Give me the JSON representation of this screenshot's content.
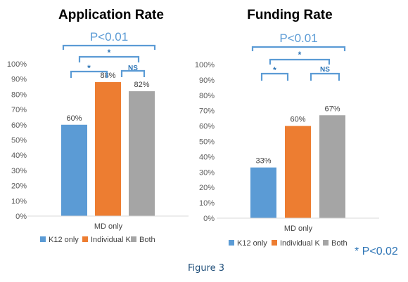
{
  "figure_caption": "Figure 3",
  "footnote": "* P<0.02",
  "chart_data": [
    {
      "type": "bar",
      "title": "Application Rate",
      "categories": [
        "MD only"
      ],
      "series": [
        {
          "name": "K12 only",
          "values": [
            60
          ],
          "label": "60%",
          "color": "#5b9bd5"
        },
        {
          "name": "Individual K",
          "values": [
            88
          ],
          "label": "88%",
          "color": "#ed7d31"
        },
        {
          "name": "Both",
          "values": [
            82
          ],
          "label": "82%",
          "color": "#a5a5a5"
        }
      ],
      "ylim": [
        0,
        100
      ],
      "y_ticks": [
        "0%",
        "10%",
        "20%",
        "30%",
        "40%",
        "50%",
        "60%",
        "70%",
        "80%",
        "90%",
        "100%"
      ],
      "grid": false,
      "legend": "bottom",
      "significance": {
        "overall": "P<0.01",
        "k12_vs_both": "*",
        "k12_vs_individual": "*",
        "individual_vs_both": "NS"
      }
    },
    {
      "type": "bar",
      "title": "Funding Rate",
      "categories": [
        "MD only"
      ],
      "series": [
        {
          "name": "K12 only",
          "values": [
            33
          ],
          "label": "33%",
          "color": "#5b9bd5"
        },
        {
          "name": "Individual K",
          "values": [
            60
          ],
          "label": "60%",
          "color": "#ed7d31"
        },
        {
          "name": "Both",
          "values": [
            67
          ],
          "label": "67%",
          "color": "#a5a5a5"
        }
      ],
      "ylim": [
        0,
        100
      ],
      "y_ticks": [
        "0%",
        "10%",
        "20%",
        "30%",
        "40%",
        "50%",
        "60%",
        "70%",
        "80%",
        "90%",
        "100%"
      ],
      "grid": false,
      "legend": "bottom",
      "significance": {
        "overall": "P<0.01",
        "k12_vs_both": "*",
        "k12_vs_individual": "*",
        "individual_vs_both": "NS"
      }
    }
  ]
}
